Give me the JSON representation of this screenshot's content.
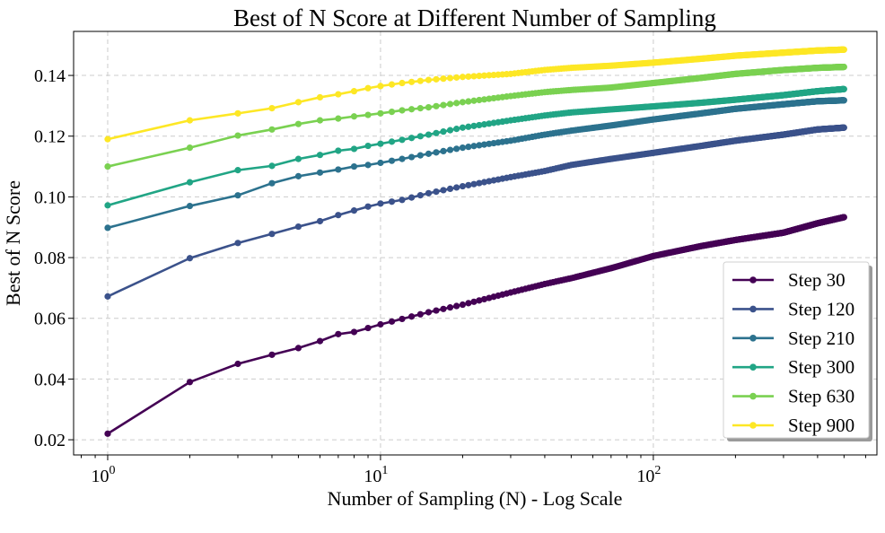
{
  "chart_data": {
    "type": "line",
    "title": "Best of N Score at Different Number of Sampling",
    "xlabel": "Number of Sampling (N) - Log Scale",
    "ylabel": "Best of N Score",
    "x_scale": "log",
    "xlim": [
      0.75,
      660
    ],
    "ylim": [
      0.015,
      0.1545
    ],
    "x_ticks": [
      {
        "base": "10",
        "exp": "0",
        "value": 1
      },
      {
        "base": "10",
        "exp": "1",
        "value": 10
      },
      {
        "base": "10",
        "exp": "2",
        "value": 100
      }
    ],
    "y_ticks": [
      "0.02",
      "0.04",
      "0.06",
      "0.08",
      "0.10",
      "0.12",
      "0.14"
    ],
    "grid": true,
    "legend_position": "lower-right",
    "series": [
      {
        "name": "Step 30",
        "color": "#440154",
        "anchors": [
          [
            1,
            0.022
          ],
          [
            2,
            0.039
          ],
          [
            3,
            0.045
          ],
          [
            4,
            0.048
          ],
          [
            5,
            0.0502
          ],
          [
            6,
            0.0525
          ],
          [
            7,
            0.0548
          ],
          [
            8,
            0.0555
          ],
          [
            9,
            0.0568
          ],
          [
            10,
            0.058
          ],
          [
            12,
            0.0598
          ],
          [
            15,
            0.062
          ],
          [
            20,
            0.0645
          ],
          [
            30,
            0.0685
          ],
          [
            40,
            0.0713
          ],
          [
            50,
            0.0732
          ],
          [
            70,
            0.0765
          ],
          [
            100,
            0.0805
          ],
          [
            150,
            0.0838
          ],
          [
            200,
            0.0858
          ],
          [
            300,
            0.0882
          ],
          [
            400,
            0.0913
          ],
          [
            500,
            0.0933
          ]
        ]
      },
      {
        "name": "Step 120",
        "color": "#3b528b",
        "anchors": [
          [
            1,
            0.0672
          ],
          [
            2,
            0.0798
          ],
          [
            3,
            0.0848
          ],
          [
            4,
            0.0878
          ],
          [
            5,
            0.0902
          ],
          [
            6,
            0.092
          ],
          [
            7,
            0.094
          ],
          [
            8,
            0.0955
          ],
          [
            9,
            0.0968
          ],
          [
            10,
            0.0978
          ],
          [
            12,
            0.099
          ],
          [
            15,
            0.1012
          ],
          [
            20,
            0.1035
          ],
          [
            30,
            0.1065
          ],
          [
            40,
            0.1085
          ],
          [
            50,
            0.1105
          ],
          [
            70,
            0.1125
          ],
          [
            100,
            0.1145
          ],
          [
            150,
            0.1168
          ],
          [
            200,
            0.1185
          ],
          [
            300,
            0.1205
          ],
          [
            400,
            0.1222
          ],
          [
            500,
            0.1228
          ]
        ]
      },
      {
        "name": "Step 210",
        "color": "#2c728e",
        "anchors": [
          [
            1,
            0.0898
          ],
          [
            2,
            0.097
          ],
          [
            3,
            0.1005
          ],
          [
            4,
            0.1045
          ],
          [
            5,
            0.1068
          ],
          [
            6,
            0.108
          ],
          [
            7,
            0.109
          ],
          [
            8,
            0.11
          ],
          [
            9,
            0.1105
          ],
          [
            10,
            0.1112
          ],
          [
            12,
            0.1125
          ],
          [
            15,
            0.1142
          ],
          [
            20,
            0.1162
          ],
          [
            30,
            0.1185
          ],
          [
            40,
            0.1205
          ],
          [
            50,
            0.1218
          ],
          [
            70,
            0.1235
          ],
          [
            100,
            0.1255
          ],
          [
            150,
            0.1275
          ],
          [
            200,
            0.129
          ],
          [
            300,
            0.1305
          ],
          [
            400,
            0.1315
          ],
          [
            500,
            0.1318
          ]
        ]
      },
      {
        "name": "Step 300",
        "color": "#21a585",
        "anchors": [
          [
            1,
            0.0972
          ],
          [
            2,
            0.1048
          ],
          [
            3,
            0.1088
          ],
          [
            4,
            0.1102
          ],
          [
            5,
            0.1125
          ],
          [
            6,
            0.1138
          ],
          [
            7,
            0.1152
          ],
          [
            8,
            0.1158
          ],
          [
            9,
            0.1168
          ],
          [
            10,
            0.1175
          ],
          [
            12,
            0.1188
          ],
          [
            15,
            0.1205
          ],
          [
            20,
            0.1228
          ],
          [
            30,
            0.1252
          ],
          [
            40,
            0.1268
          ],
          [
            50,
            0.1278
          ],
          [
            70,
            0.1288
          ],
          [
            100,
            0.1298
          ],
          [
            150,
            0.131
          ],
          [
            200,
            0.132
          ],
          [
            300,
            0.1335
          ],
          [
            400,
            0.1348
          ],
          [
            500,
            0.1355
          ]
        ]
      },
      {
        "name": "Step 630",
        "color": "#7ad151",
        "anchors": [
          [
            1,
            0.11
          ],
          [
            2,
            0.1162
          ],
          [
            3,
            0.1202
          ],
          [
            4,
            0.1222
          ],
          [
            5,
            0.124
          ],
          [
            6,
            0.1252
          ],
          [
            7,
            0.1258
          ],
          [
            8,
            0.1265
          ],
          [
            9,
            0.127
          ],
          [
            10,
            0.1275
          ],
          [
            12,
            0.1285
          ],
          [
            15,
            0.1295
          ],
          [
            20,
            0.1312
          ],
          [
            30,
            0.1332
          ],
          [
            40,
            0.1345
          ],
          [
            50,
            0.1352
          ],
          [
            70,
            0.136
          ],
          [
            100,
            0.1375
          ],
          [
            150,
            0.1392
          ],
          [
            200,
            0.1405
          ],
          [
            300,
            0.1418
          ],
          [
            400,
            0.1425
          ],
          [
            500,
            0.1428
          ]
        ]
      },
      {
        "name": "Step 900",
        "color": "#fde725",
        "anchors": [
          [
            1,
            0.119
          ],
          [
            2,
            0.1252
          ],
          [
            3,
            0.1275
          ],
          [
            4,
            0.1292
          ],
          [
            5,
            0.1312
          ],
          [
            6,
            0.1328
          ],
          [
            7,
            0.1338
          ],
          [
            8,
            0.1348
          ],
          [
            9,
            0.1358
          ],
          [
            10,
            0.1365
          ],
          [
            12,
            0.1375
          ],
          [
            15,
            0.1385
          ],
          [
            20,
            0.1395
          ],
          [
            30,
            0.1405
          ],
          [
            40,
            0.1418
          ],
          [
            50,
            0.1425
          ],
          [
            70,
            0.1432
          ],
          [
            100,
            0.1442
          ],
          [
            150,
            0.1455
          ],
          [
            200,
            0.1465
          ],
          [
            300,
            0.1475
          ],
          [
            400,
            0.1482
          ],
          [
            500,
            0.1485
          ]
        ]
      }
    ]
  }
}
